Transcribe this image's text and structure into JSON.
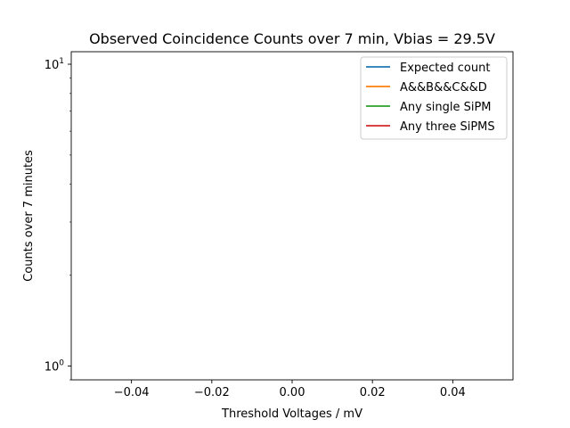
{
  "chart_data": {
    "type": "line",
    "title": "Observed Coincidence Counts over 7 min, Vbias = 29.5V",
    "xlabel": "Threshold Voltages / mV",
    "ylabel": "Counts over 7 minutes",
    "xlim": [
      -0.055,
      0.055
    ],
    "x_ticks": [
      -0.04,
      -0.02,
      0.0,
      0.02,
      0.04
    ],
    "x_tick_labels": [
      "−0.04",
      "−0.02",
      "0.00",
      "0.02",
      "0.04"
    ],
    "yscale": "log",
    "ylim": [
      0.9,
      11
    ],
    "y_ticks": [
      {
        "value": 1,
        "base": "10",
        "exponent": "0"
      },
      {
        "value": 10,
        "base": "10",
        "exponent": "1"
      }
    ],
    "grid": false,
    "legend_position": "top-right",
    "series": [
      {
        "name": "Expected count",
        "color": "#1f77b4",
        "x": [],
        "y": []
      },
      {
        "name": "A&&B&&C&&D",
        "color": "#ff7f0e",
        "x": [],
        "y": []
      },
      {
        "name": "Any single SiPM",
        "color": "#2ca02c",
        "x": [],
        "y": []
      },
      {
        "name": "Any three SiPMS",
        "color": "#d62728",
        "x": [],
        "y": []
      }
    ]
  }
}
